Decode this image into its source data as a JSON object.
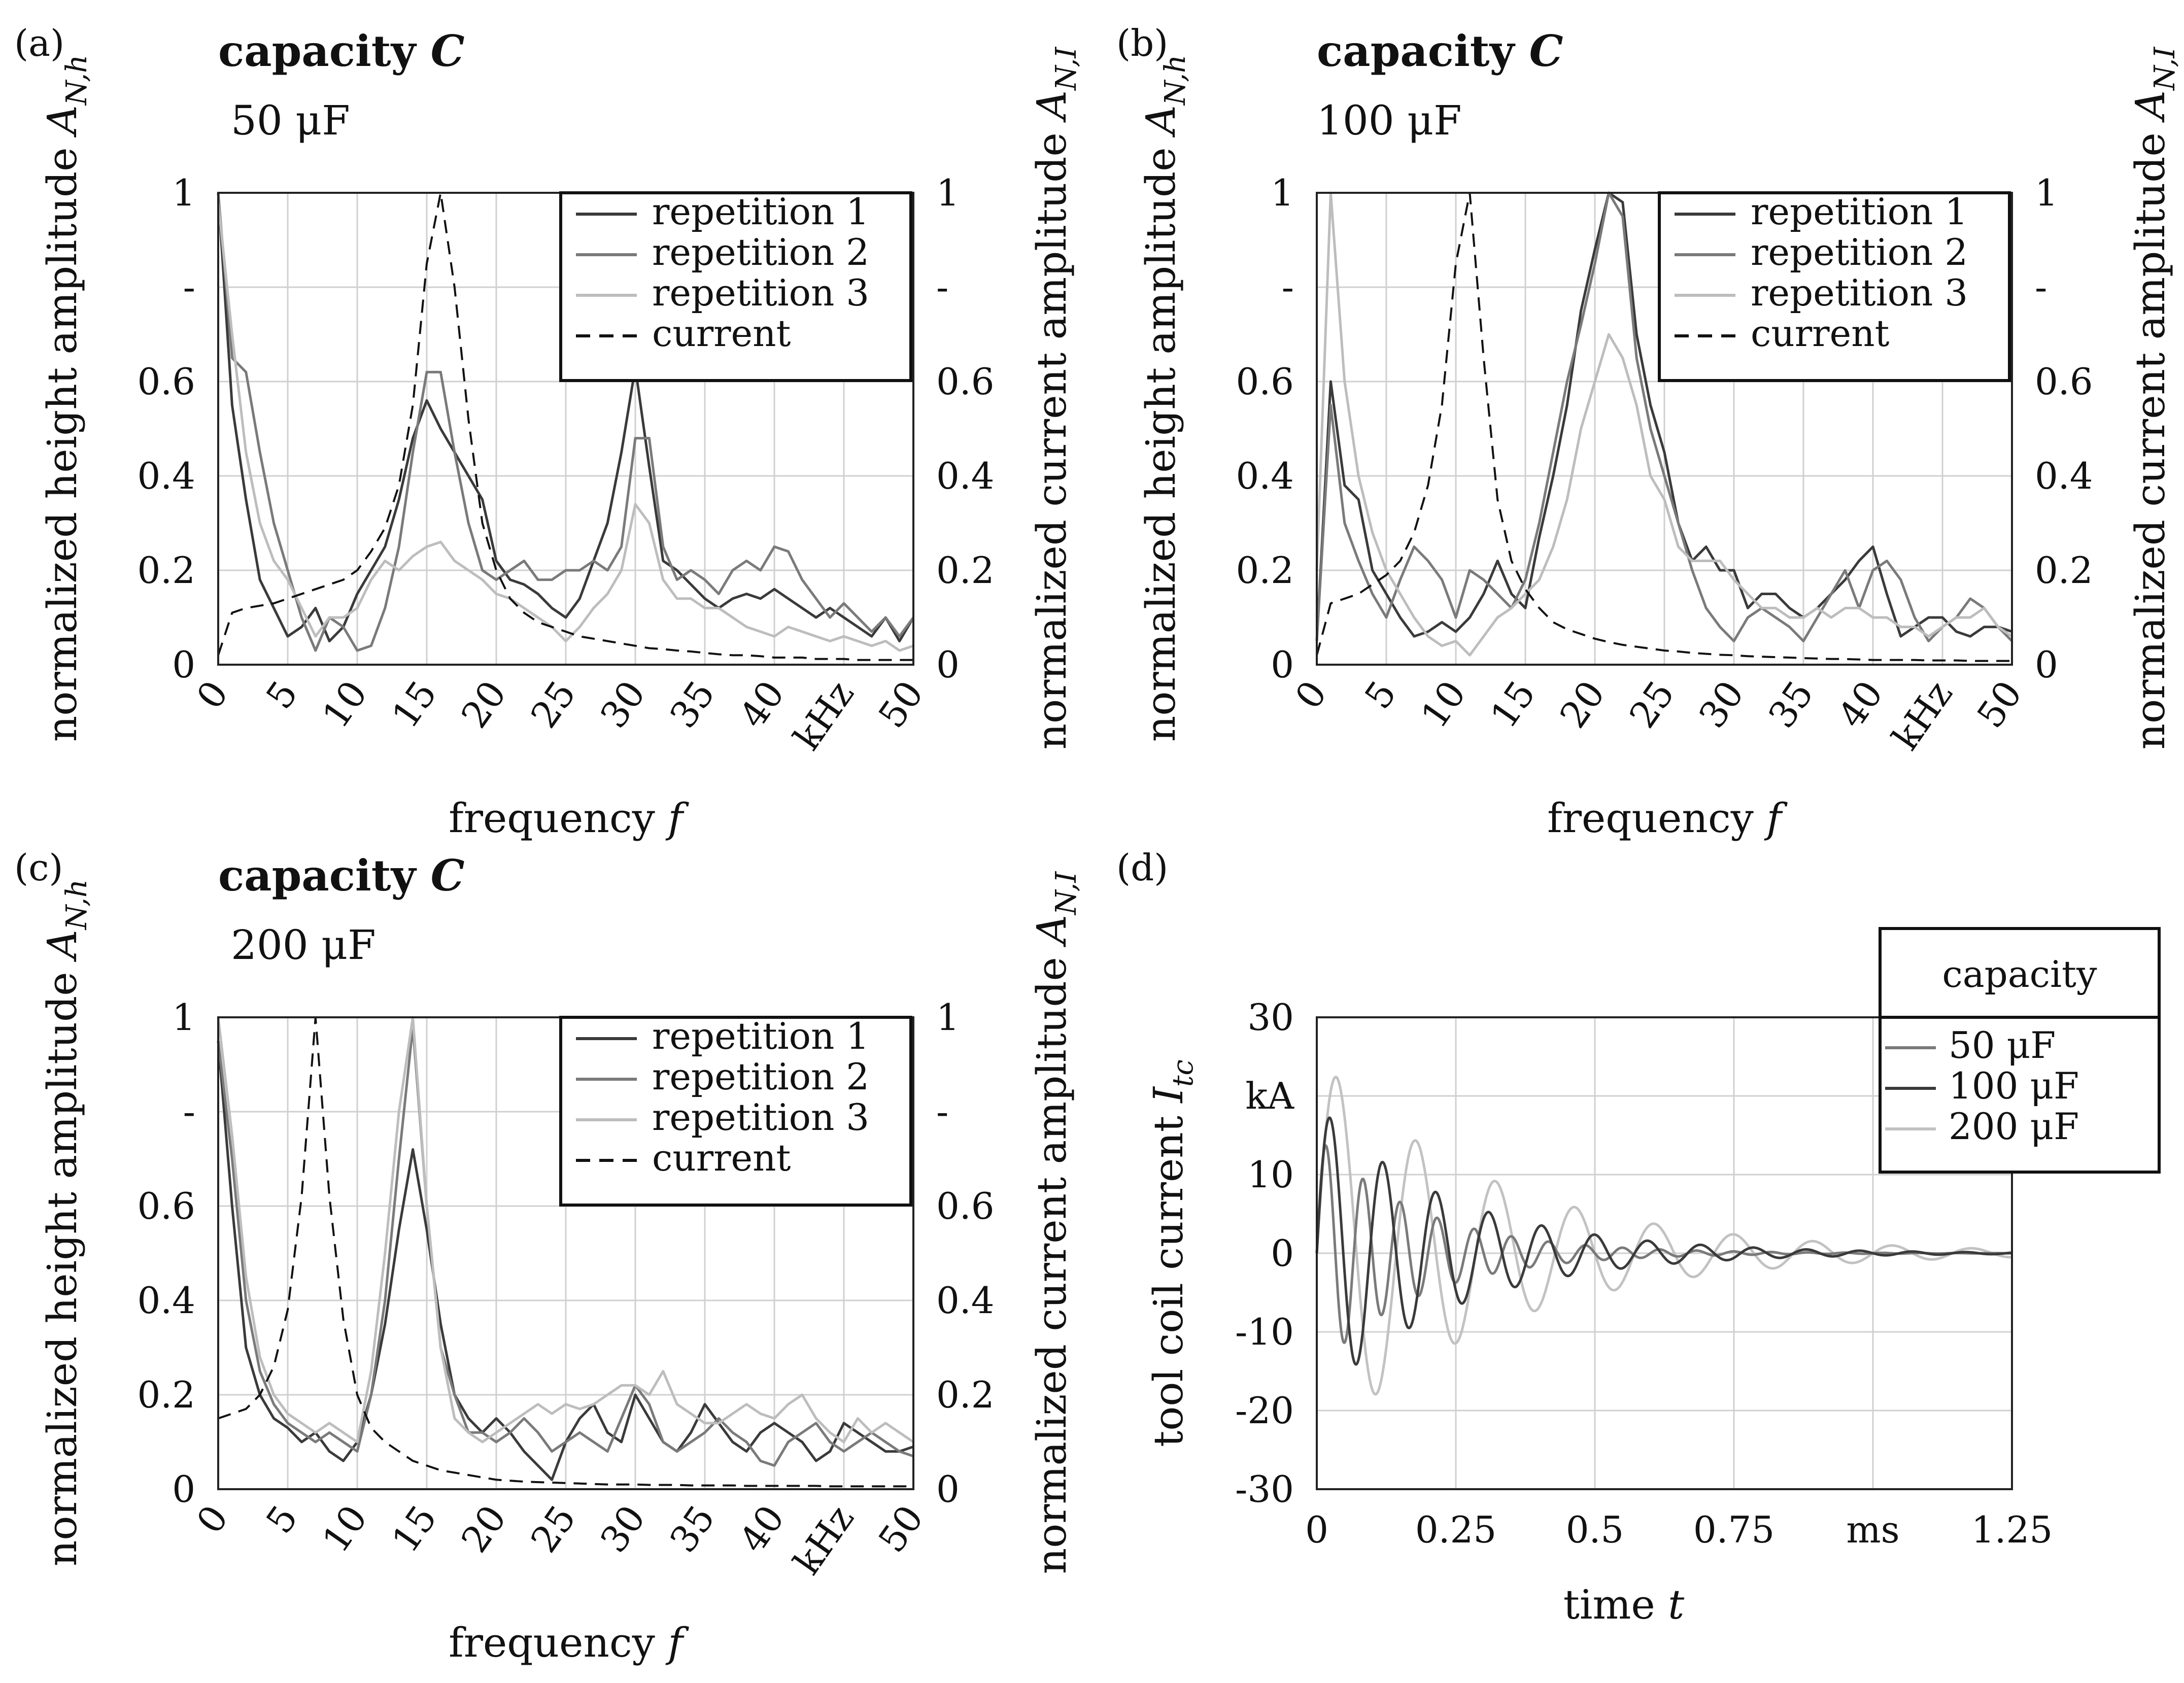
{
  "colors": {
    "repetition_1": "#3a3a3a",
    "repetition_2": "#7a7a7a",
    "repetition_3": "#bdbdbd",
    "current": "#111111",
    "cap_50": "#7a7a7a",
    "cap_100": "#3a3a3a",
    "cap_200": "#c2c2c2"
  },
  "chart_data": [
    {
      "panel": "(a)",
      "type": "line",
      "title_main": "capacity ",
      "title_italic": "C",
      "subtitle": "50 μF",
      "ylabel_left": "normalized height amplitude",
      "ylabel_left_symbol": "A",
      "ylabel_left_sub": "N,h",
      "ylabel_right": "normalized current amplitude",
      "ylabel_right_symbol": "A",
      "ylabel_right_sub": "N,I",
      "xlabel": "frequency",
      "xlabel_symbol": "f",
      "xlim": [
        0,
        50
      ],
      "ylim": [
        0,
        1
      ],
      "xticks": [
        0,
        5,
        10,
        15,
        20,
        25,
        30,
        35,
        40,
        45,
        50
      ],
      "xtick_labels": [
        "0",
        "5",
        "10",
        "15",
        "20",
        "25",
        "30",
        "35",
        "40",
        "kHz",
        "50"
      ],
      "yticks": [
        0,
        0.2,
        0.4,
        0.6,
        0.8,
        1
      ],
      "ytick_labels": [
        "0",
        "0.2",
        "0.4",
        "0.6",
        "-",
        "1"
      ],
      "grid": true,
      "legend_position": "top-right",
      "x": [
        0,
        1,
        2,
        3,
        4,
        5,
        6,
        7,
        8,
        9,
        10,
        11,
        12,
        13,
        14,
        15,
        16,
        17,
        18,
        19,
        20,
        21,
        22,
        23,
        24,
        25,
        26,
        27,
        28,
        29,
        30,
        31,
        32,
        33,
        34,
        35,
        36,
        37,
        38,
        39,
        40,
        41,
        42,
        43,
        44,
        45,
        46,
        47,
        48,
        49,
        50
      ],
      "series": [
        {
          "name": "repetition 1",
          "style": "solid",
          "color_key": "repetition_1",
          "values": [
            1,
            0.55,
            0.35,
            0.18,
            0.12,
            0.06,
            0.08,
            0.12,
            0.05,
            0.08,
            0.15,
            0.2,
            0.25,
            0.35,
            0.48,
            0.56,
            0.5,
            0.45,
            0.4,
            0.35,
            0.22,
            0.18,
            0.17,
            0.15,
            0.12,
            0.1,
            0.14,
            0.22,
            0.3,
            0.45,
            0.63,
            0.42,
            0.22,
            0.2,
            0.17,
            0.14,
            0.12,
            0.14,
            0.15,
            0.14,
            0.16,
            0.14,
            0.12,
            0.1,
            0.12,
            0.1,
            0.08,
            0.06,
            0.1,
            0.05,
            0.1
          ]
        },
        {
          "name": "repetition 2",
          "style": "solid",
          "color_key": "repetition_2",
          "values": [
            1,
            0.65,
            0.62,
            0.45,
            0.3,
            0.2,
            0.1,
            0.03,
            0.1,
            0.08,
            0.03,
            0.04,
            0.12,
            0.25,
            0.45,
            0.62,
            0.62,
            0.45,
            0.3,
            0.2,
            0.18,
            0.2,
            0.22,
            0.18,
            0.18,
            0.2,
            0.2,
            0.22,
            0.2,
            0.25,
            0.48,
            0.48,
            0.25,
            0.18,
            0.2,
            0.18,
            0.15,
            0.2,
            0.22,
            0.2,
            0.25,
            0.24,
            0.18,
            0.14,
            0.1,
            0.13,
            0.1,
            0.07,
            0.1,
            0.06,
            0.1
          ]
        },
        {
          "name": "repetition 3",
          "style": "solid",
          "color_key": "repetition_3",
          "values": [
            0.98,
            0.7,
            0.45,
            0.3,
            0.22,
            0.18,
            0.12,
            0.06,
            0.1,
            0.1,
            0.12,
            0.18,
            0.22,
            0.2,
            0.23,
            0.25,
            0.26,
            0.22,
            0.2,
            0.18,
            0.15,
            0.14,
            0.12,
            0.1,
            0.08,
            0.05,
            0.08,
            0.12,
            0.15,
            0.2,
            0.34,
            0.3,
            0.18,
            0.14,
            0.14,
            0.12,
            0.12,
            0.1,
            0.08,
            0.07,
            0.06,
            0.08,
            0.07,
            0.06,
            0.05,
            0.06,
            0.05,
            0.04,
            0.05,
            0.03,
            0.04
          ]
        },
        {
          "name": "current",
          "style": "dashed",
          "color_key": "current",
          "values": [
            0.02,
            0.11,
            0.12,
            0.125,
            0.13,
            0.14,
            0.15,
            0.16,
            0.17,
            0.18,
            0.2,
            0.24,
            0.29,
            0.38,
            0.55,
            0.85,
            1,
            0.8,
            0.52,
            0.3,
            0.2,
            0.14,
            0.11,
            0.09,
            0.08,
            0.07,
            0.06,
            0.055,
            0.05,
            0.045,
            0.04,
            0.035,
            0.033,
            0.03,
            0.028,
            0.025,
            0.022,
            0.02,
            0.02,
            0.018,
            0.015,
            0.015,
            0.015,
            0.012,
            0.012,
            0.012,
            0.01,
            0.01,
            0.01,
            0.01,
            0.01
          ]
        }
      ]
    },
    {
      "panel": "(b)",
      "type": "line",
      "title_main": "capacity ",
      "title_italic": "C",
      "subtitle": "100 μF",
      "ylabel_left": "normalized height amplitude",
      "ylabel_left_symbol": "A",
      "ylabel_left_sub": "N,h",
      "ylabel_right": "normalized current amplitude",
      "ylabel_right_symbol": "A",
      "ylabel_right_sub": "N,I",
      "xlabel": "frequency",
      "xlabel_symbol": "f",
      "xlim": [
        0,
        50
      ],
      "ylim": [
        0,
        1
      ],
      "xticks": [
        0,
        5,
        10,
        15,
        20,
        25,
        30,
        35,
        40,
        45,
        50
      ],
      "xtick_labels": [
        "0",
        "5",
        "10",
        "15",
        "20",
        "25",
        "30",
        "35",
        "40",
        "kHz",
        "50"
      ],
      "yticks": [
        0,
        0.2,
        0.4,
        0.6,
        0.8,
        1
      ],
      "ytick_labels": [
        "0",
        "0.2",
        "0.4",
        "0.6",
        "-",
        "1"
      ],
      "grid": true,
      "legend_position": "top-right",
      "x": [
        0,
        1,
        2,
        3,
        4,
        5,
        6,
        7,
        8,
        9,
        10,
        11,
        12,
        13,
        14,
        15,
        16,
        17,
        18,
        19,
        20,
        21,
        22,
        23,
        24,
        25,
        26,
        27,
        28,
        29,
        30,
        31,
        32,
        33,
        34,
        35,
        36,
        37,
        38,
        39,
        40,
        41,
        42,
        43,
        44,
        45,
        46,
        47,
        48,
        49,
        50
      ],
      "series": [
        {
          "name": "repetition 1",
          "style": "solid",
          "color_key": "repetition_1",
          "values": [
            0.05,
            0.6,
            0.38,
            0.35,
            0.2,
            0.15,
            0.1,
            0.06,
            0.07,
            0.09,
            0.07,
            0.1,
            0.15,
            0.22,
            0.15,
            0.12,
            0.27,
            0.4,
            0.55,
            0.75,
            0.88,
            1,
            0.98,
            0.7,
            0.55,
            0.45,
            0.3,
            0.22,
            0.25,
            0.2,
            0.2,
            0.12,
            0.15,
            0.15,
            0.12,
            0.1,
            0.12,
            0.15,
            0.18,
            0.22,
            0.25,
            0.15,
            0.06,
            0.08,
            0.1,
            0.1,
            0.07,
            0.06,
            0.08,
            0.08,
            0.07
          ]
        },
        {
          "name": "repetition 2",
          "style": "solid",
          "color_key": "repetition_2",
          "values": [
            0.05,
            0.55,
            0.3,
            0.22,
            0.15,
            0.1,
            0.18,
            0.25,
            0.22,
            0.18,
            0.1,
            0.2,
            0.18,
            0.15,
            0.12,
            0.18,
            0.3,
            0.45,
            0.6,
            0.72,
            0.85,
            1,
            0.95,
            0.65,
            0.5,
            0.4,
            0.3,
            0.2,
            0.12,
            0.08,
            0.05,
            0.1,
            0.12,
            0.1,
            0.08,
            0.05,
            0.1,
            0.15,
            0.2,
            0.12,
            0.2,
            0.22,
            0.18,
            0.1,
            0.05,
            0.08,
            0.1,
            0.14,
            0.12,
            0.08,
            0.05
          ]
        },
        {
          "name": "repetition 3",
          "style": "solid",
          "color_key": "repetition_3",
          "values": [
            0.2,
            1,
            0.6,
            0.4,
            0.28,
            0.2,
            0.15,
            0.1,
            0.06,
            0.04,
            0.05,
            0.02,
            0.06,
            0.1,
            0.12,
            0.15,
            0.18,
            0.25,
            0.35,
            0.5,
            0.6,
            0.7,
            0.65,
            0.55,
            0.4,
            0.35,
            0.25,
            0.22,
            0.22,
            0.22,
            0.18,
            0.15,
            0.12,
            0.12,
            0.1,
            0.1,
            0.12,
            0.1,
            0.12,
            0.12,
            0.1,
            0.1,
            0.08,
            0.08,
            0.06,
            0.08,
            0.1,
            0.1,
            0.12,
            0.08,
            0.06
          ]
        },
        {
          "name": "current",
          "style": "dashed",
          "color_key": "current",
          "values": [
            0.02,
            0.13,
            0.14,
            0.15,
            0.17,
            0.19,
            0.22,
            0.28,
            0.38,
            0.55,
            0.85,
            1,
            0.65,
            0.35,
            0.22,
            0.16,
            0.12,
            0.09,
            0.075,
            0.065,
            0.055,
            0.048,
            0.042,
            0.038,
            0.034,
            0.03,
            0.028,
            0.025,
            0.023,
            0.021,
            0.02,
            0.018,
            0.017,
            0.016,
            0.015,
            0.014,
            0.013,
            0.012,
            0.012,
            0.011,
            0.01,
            0.01,
            0.01,
            0.01,
            0.009,
            0.009,
            0.009,
            0.008,
            0.008,
            0.008,
            0.008
          ]
        }
      ]
    },
    {
      "panel": "(c)",
      "type": "line",
      "title_main": "capacity ",
      "title_italic": "C",
      "subtitle": "200 μF",
      "ylabel_left": "normalized height amplitude",
      "ylabel_left_symbol": "A",
      "ylabel_left_sub": "N,h",
      "ylabel_right": "normalized current amplitude",
      "ylabel_right_symbol": "A",
      "ylabel_right_sub": "N,I",
      "xlabel": "frequency",
      "xlabel_symbol": "f",
      "xlim": [
        0,
        50
      ],
      "ylim": [
        0,
        1
      ],
      "xticks": [
        0,
        5,
        10,
        15,
        20,
        25,
        30,
        35,
        40,
        45,
        50
      ],
      "xtick_labels": [
        "0",
        "5",
        "10",
        "15",
        "20",
        "25",
        "30",
        "35",
        "40",
        "kHz",
        "50"
      ],
      "yticks": [
        0,
        0.2,
        0.4,
        0.6,
        0.8,
        1
      ],
      "ytick_labels": [
        "0",
        "0.2",
        "0.4",
        "0.6",
        "-",
        "1"
      ],
      "grid": true,
      "legend_position": "top-right",
      "x": [
        0,
        1,
        2,
        3,
        4,
        5,
        6,
        7,
        8,
        9,
        10,
        11,
        12,
        13,
        14,
        15,
        16,
        17,
        18,
        19,
        20,
        21,
        22,
        23,
        24,
        25,
        26,
        27,
        28,
        29,
        30,
        31,
        32,
        33,
        34,
        35,
        36,
        37,
        38,
        39,
        40,
        41,
        42,
        43,
        44,
        45,
        46,
        47,
        48,
        49,
        50
      ],
      "series": [
        {
          "name": "repetition 1",
          "style": "solid",
          "color_key": "repetition_1",
          "values": [
            0.95,
            0.6,
            0.3,
            0.2,
            0.15,
            0.13,
            0.1,
            0.12,
            0.08,
            0.06,
            0.1,
            0.2,
            0.35,
            0.55,
            0.72,
            0.55,
            0.35,
            0.2,
            0.15,
            0.12,
            0.15,
            0.12,
            0.08,
            0.05,
            0.02,
            0.1,
            0.15,
            0.18,
            0.12,
            0.1,
            0.2,
            0.15,
            0.1,
            0.08,
            0.12,
            0.18,
            0.14,
            0.1,
            0.08,
            0.12,
            0.14,
            0.12,
            0.1,
            0.06,
            0.08,
            0.14,
            0.12,
            0.1,
            0.08,
            0.08,
            0.09
          ]
        },
        {
          "name": "repetition 2",
          "style": "solid",
          "color_key": "repetition_2",
          "values": [
            0.95,
            0.7,
            0.4,
            0.25,
            0.18,
            0.14,
            0.12,
            0.1,
            0.12,
            0.1,
            0.08,
            0.2,
            0.4,
            0.7,
            0.98,
            0.6,
            0.3,
            0.2,
            0.12,
            0.12,
            0.1,
            0.12,
            0.15,
            0.12,
            0.08,
            0.1,
            0.12,
            0.1,
            0.08,
            0.15,
            0.22,
            0.18,
            0.1,
            0.08,
            0.1,
            0.12,
            0.15,
            0.12,
            0.1,
            0.06,
            0.05,
            0.1,
            0.12,
            0.14,
            0.1,
            0.08,
            0.1,
            0.12,
            0.1,
            0.08,
            0.07
          ]
        },
        {
          "name": "repetition 3",
          "style": "solid",
          "color_key": "repetition_3",
          "values": [
            1,
            0.75,
            0.45,
            0.28,
            0.2,
            0.16,
            0.14,
            0.12,
            0.14,
            0.12,
            0.1,
            0.25,
            0.5,
            0.8,
            1,
            0.6,
            0.3,
            0.15,
            0.12,
            0.1,
            0.12,
            0.14,
            0.16,
            0.18,
            0.16,
            0.18,
            0.17,
            0.18,
            0.2,
            0.22,
            0.22,
            0.2,
            0.25,
            0.18,
            0.16,
            0.14,
            0.14,
            0.16,
            0.18,
            0.16,
            0.15,
            0.18,
            0.2,
            0.15,
            0.12,
            0.1,
            0.15,
            0.12,
            0.14,
            0.12,
            0.1
          ]
        },
        {
          "name": "current",
          "style": "dashed",
          "color_key": "current",
          "values": [
            0.15,
            0.16,
            0.17,
            0.2,
            0.26,
            0.38,
            0.62,
            1,
            0.62,
            0.36,
            0.2,
            0.13,
            0.1,
            0.08,
            0.06,
            0.05,
            0.04,
            0.035,
            0.03,
            0.025,
            0.02,
            0.018,
            0.016,
            0.015,
            0.014,
            0.013,
            0.012,
            0.011,
            0.01,
            0.01,
            0.01,
            0.009,
            0.009,
            0.009,
            0.008,
            0.008,
            0.008,
            0.008,
            0.007,
            0.007,
            0.007,
            0.007,
            0.007,
            0.007,
            0.006,
            0.006,
            0.006,
            0.006,
            0.006,
            0.006,
            0.006
          ]
        }
      ]
    },
    {
      "panel": "(d)",
      "type": "line",
      "ylabel": "tool coil current",
      "ylabel_symbol": "I",
      "ylabel_sub": "tc",
      "xlabel": "time",
      "xlabel_symbol": "t",
      "xlim": [
        0,
        1.25
      ],
      "ylim": [
        -30,
        30
      ],
      "xticks": [
        0,
        0.25,
        0.5,
        0.75,
        1,
        1.25
      ],
      "xtick_labels": [
        "0",
        "0.25",
        "0.5",
        "0.75",
        "ms",
        "1.25"
      ],
      "yticks": [
        -30,
        -20,
        -10,
        0,
        10,
        20,
        30
      ],
      "ytick_labels": [
        "-30",
        "-20",
        "-10",
        "0",
        "10",
        "kA",
        "30"
      ],
      "grid": true,
      "legend_title": "capacity",
      "legend_position": "top-right",
      "series": [
        {
          "name": "50 μF",
          "color_key": "cap_50",
          "amplitude": 15,
          "frequency_khz": 15,
          "decay_ms": 0.18
        },
        {
          "name": "100 μF",
          "color_key": "cap_100",
          "amplitude": 19,
          "frequency_khz": 10.5,
          "decay_ms": 0.24
        },
        {
          "name": "200 μF",
          "color_key": "cap_200",
          "amplitude": 25,
          "frequency_khz": 7,
          "decay_ms": 0.32
        }
      ]
    }
  ]
}
